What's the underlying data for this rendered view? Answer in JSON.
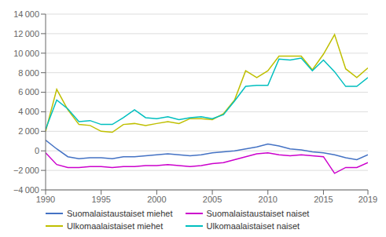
{
  "chart_data": {
    "type": "line",
    "x": [
      1990,
      1991,
      1992,
      1993,
      1994,
      1995,
      1996,
      1997,
      1998,
      1999,
      2000,
      2001,
      2002,
      2003,
      2004,
      2005,
      2006,
      2007,
      2008,
      2009,
      2010,
      2011,
      2012,
      2013,
      2014,
      2015,
      2016,
      2017,
      2018,
      2019
    ],
    "series": [
      {
        "name": "Suomalaistaustaiset miehet",
        "color": "#4472C4",
        "values": [
          1100,
          200,
          -600,
          -800,
          -700,
          -700,
          -800,
          -600,
          -600,
          -500,
          -400,
          -300,
          -400,
          -500,
          -400,
          -200,
          -100,
          0,
          200,
          400,
          700,
          500,
          200,
          100,
          -100,
          -200,
          -400,
          -700,
          -900,
          -400
        ]
      },
      {
        "name": "Ulkomaalaistaiset miehet",
        "color": "#BFBF00",
        "values": [
          2000,
          6300,
          4200,
          2700,
          2600,
          2000,
          1900,
          2700,
          2800,
          2600,
          2800,
          3000,
          2800,
          3300,
          3300,
          3200,
          3800,
          5200,
          8200,
          7500,
          8200,
          9700,
          9700,
          9700,
          8300,
          9900,
          11900,
          8400,
          7500,
          8500
        ]
      },
      {
        "name": "Suomalaistaustaiset naiset",
        "color": "#CC00CC",
        "values": [
          -200,
          -1400,
          -1700,
          -1700,
          -1600,
          -1600,
          -1700,
          -1600,
          -1600,
          -1500,
          -1500,
          -1400,
          -1500,
          -1600,
          -1500,
          -1300,
          -1200,
          -900,
          -600,
          -300,
          -200,
          -400,
          -500,
          -400,
          -500,
          -600,
          -2300,
          -1700,
          -1700,
          -1200
        ]
      },
      {
        "name": "Ulkomaalaistaiset naiset",
        "color": "#00BFBF",
        "values": [
          2200,
          5200,
          4300,
          3000,
          3100,
          2700,
          2700,
          3400,
          4200,
          3400,
          3300,
          3500,
          3200,
          3400,
          3500,
          3300,
          3700,
          5100,
          6600,
          6700,
          6700,
          9400,
          9300,
          9500,
          8200,
          9300,
          8100,
          6600,
          6600,
          7500
        ]
      }
    ],
    "xlim": [
      1990,
      2019
    ],
    "xticks": [
      1990,
      1995,
      2000,
      2005,
      2010,
      2015,
      2019
    ],
    "ylim": [
      -4000,
      14000
    ],
    "yticks": [
      {
        "value": -4000,
        "label": "−4 000"
      },
      {
        "value": -2000,
        "label": "−2 000"
      },
      0,
      {
        "value": 2000,
        "label": "2 000"
      },
      {
        "value": 4000,
        "label": "4 000"
      },
      {
        "value": 6000,
        "label": "6 000"
      },
      {
        "value": 8000,
        "label": "8 000"
      },
      {
        "value": 10000,
        "label": "10 000"
      },
      {
        "value": 12000,
        "label": "12 000"
      },
      {
        "value": 14000,
        "label": "14 000"
      }
    ],
    "grid": true,
    "legend": "bottom"
  }
}
